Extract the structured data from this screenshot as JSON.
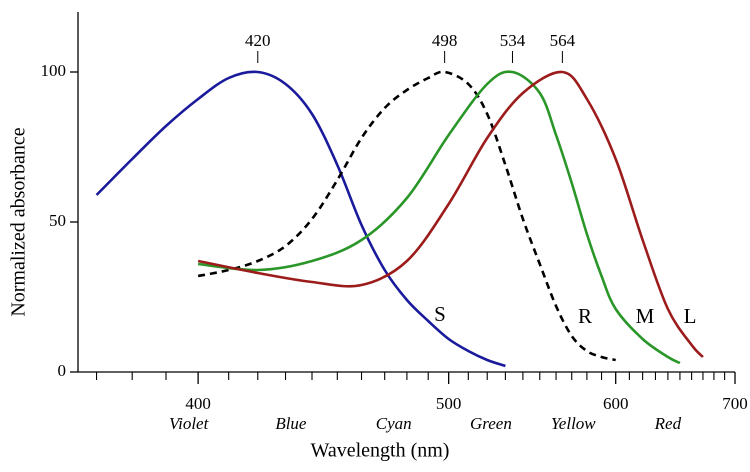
{
  "chart_data": {
    "type": "line",
    "x_label": "Wavelength (nm)",
    "y_label": "Normalized absorbance",
    "x_scale": "reciprocal",
    "xlim": [
      365,
      700
    ],
    "xticks": [
      400,
      500,
      600,
      700
    ],
    "xminorticks": [
      370,
      380,
      390,
      410,
      420,
      430,
      440,
      450,
      460,
      470,
      480,
      490,
      510,
      520,
      530,
      540,
      550,
      560,
      570,
      580,
      590,
      610,
      620,
      630,
      640,
      650,
      660,
      670,
      680,
      690
    ],
    "ylim": [
      0,
      120
    ],
    "yticks": [
      0,
      50,
      100
    ],
    "peaks": [
      420,
      498,
      534,
      564
    ],
    "band_labels": [
      "Violet",
      "Blue",
      "Cyan",
      "Green",
      "Yellow",
      "Red"
    ],
    "band_x": [
      397,
      432,
      474,
      522,
      571,
      640
    ],
    "series": [
      {
        "name": "S",
        "color": "#1a1a9c",
        "dash": false,
        "x": [
          370,
          380,
          390,
          400,
          410,
          420,
          430,
          440,
          450,
          460,
          470,
          480,
          490,
          500,
          510,
          520,
          530
        ],
        "values": [
          59,
          71,
          82,
          91,
          98,
          100,
          96,
          86,
          69,
          49,
          34,
          24,
          17,
          11,
          7,
          4,
          2
        ]
      },
      {
        "name": "R",
        "color": "#000000",
        "dash": true,
        "x": [
          400,
          410,
          420,
          430,
          440,
          450,
          460,
          470,
          480,
          490,
          498,
          510,
          520,
          530,
          540,
          550,
          560,
          570,
          580,
          590,
          600
        ],
        "values": [
          32,
          34,
          37,
          42,
          51,
          64,
          78,
          88,
          94,
          98,
          100,
          96,
          86,
          69,
          51,
          36,
          22,
          12,
          7,
          5,
          4
        ]
      },
      {
        "name": "M",
        "color": "#2a9628",
        "dash": false,
        "x": [
          400,
          420,
          440,
          460,
          480,
          500,
          520,
          534,
          550,
          560,
          570,
          580,
          590,
          600,
          620,
          640,
          650
        ],
        "values": [
          36,
          34,
          37,
          44,
          58,
          79,
          96,
          100,
          93,
          79,
          63,
          46,
          32,
          21,
          11,
          5,
          3
        ]
      },
      {
        "name": "L",
        "color": "#9c1c1c",
        "dash": false,
        "x": [
          400,
          420,
          440,
          460,
          480,
          500,
          520,
          540,
          564,
          580,
          600,
          620,
          640,
          660,
          670
        ],
        "values": [
          37,
          33,
          30,
          29,
          37,
          56,
          78,
          93,
          100,
          91,
          71,
          44,
          21,
          9,
          5
        ]
      }
    ]
  }
}
